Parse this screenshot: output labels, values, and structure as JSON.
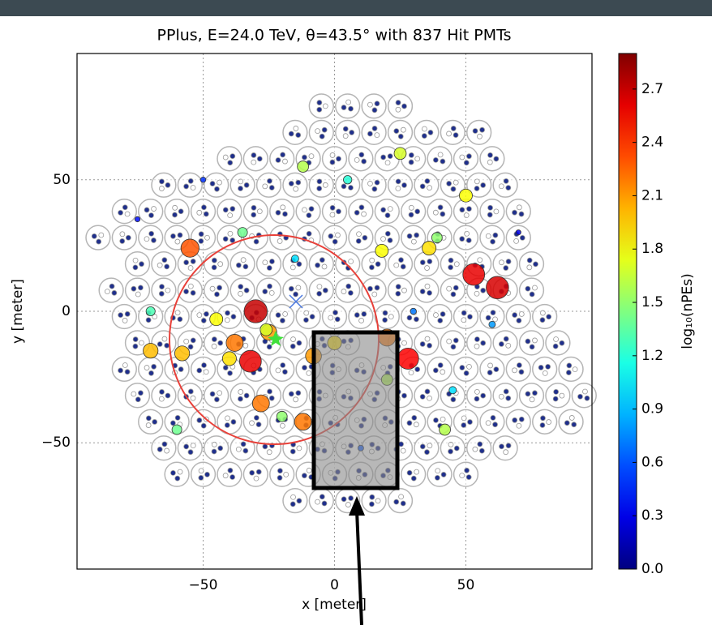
{
  "chart_data": {
    "type": "scatter",
    "title": "PPlus, E=24.0 TeV, θ=43.5° with 837 Hit PMTs",
    "x_label": "x [meter]",
    "y_label": "y [meter]",
    "colorbar_label": "log₁₀(nPEs)",
    "xlim": [
      -98,
      98
    ],
    "ylim": [
      -98,
      98
    ],
    "xticks": [
      {
        "value": -50,
        "label": "−50"
      },
      0,
      50
    ],
    "yticks": [
      {
        "value": -50,
        "label": "−50"
      },
      0,
      50
    ],
    "grid": true,
    "colormap": "jet",
    "clim": [
      0,
      2.9
    ],
    "cticks": [
      {
        "value": 0,
        "label": "0.0"
      },
      0.3,
      0.6,
      0.9,
      1.2,
      1.5,
      1.8,
      2.1,
      2.4,
      2.7
    ],
    "tanks": [
      {
        "y": 78,
        "x": [
          -5,
          5,
          15,
          25
        ]
      },
      {
        "y": 68,
        "x": [
          -15,
          -5,
          5,
          15,
          25,
          35,
          45,
          55
        ]
      },
      {
        "y": 58,
        "x": [
          -40,
          -30,
          -20,
          -10,
          0,
          10,
          20,
          30,
          40,
          50,
          60
        ]
      },
      {
        "y": 48,
        "x": [
          -65,
          -55,
          -45,
          -35,
          -25,
          -15,
          -5,
          5,
          15,
          25,
          35,
          45,
          55,
          65
        ]
      },
      {
        "y": 38,
        "x": [
          -80,
          -70,
          -60,
          -50,
          -40,
          -30,
          -20,
          -10,
          0,
          10,
          20,
          30,
          40,
          50,
          60,
          70
        ]
      },
      {
        "y": 28,
        "x": [
          -90,
          -80,
          -70,
          -60,
          -50,
          -40,
          -30,
          -20,
          -10,
          0,
          10,
          20,
          30,
          40,
          50,
          60,
          70
        ]
      },
      {
        "y": 18,
        "x": [
          -75,
          -65,
          -55,
          -45,
          -35,
          -25,
          -15,
          -5,
          5,
          15,
          25,
          35,
          45,
          55,
          65,
          75
        ]
      },
      {
        "y": 8,
        "x": [
          -85,
          -75,
          -65,
          -55,
          -45,
          -35,
          -25,
          -15,
          -5,
          5,
          15,
          25,
          35,
          45,
          55,
          65,
          75
        ]
      },
      {
        "y": -2,
        "x": [
          -80,
          -70,
          -60,
          -50,
          -40,
          -30,
          -20,
          -10,
          0,
          10,
          20,
          30,
          40,
          50,
          60,
          70,
          80
        ]
      },
      {
        "y": -12,
        "x": [
          -75,
          -65,
          -55,
          -45,
          -35,
          -25,
          -15,
          -5,
          5,
          25,
          35,
          45,
          55,
          65,
          75,
          85
        ]
      },
      {
        "y": -22,
        "x": [
          -80,
          -70,
          -60,
          -50,
          -40,
          -30,
          -20,
          -10,
          0,
          10,
          20,
          30,
          40,
          50,
          60,
          70,
          80,
          90
        ]
      },
      {
        "y": -32,
        "x": [
          -75,
          -65,
          -55,
          -45,
          -35,
          -25,
          -15,
          -5,
          5,
          15,
          25,
          35,
          45,
          55,
          65,
          75,
          85,
          95
        ]
      },
      {
        "y": -42,
        "x": [
          -70,
          -60,
          -50,
          -40,
          -30,
          -20,
          -10,
          0,
          10,
          20,
          30,
          40,
          50,
          60,
          70,
          80,
          90
        ]
      },
      {
        "y": -52,
        "x": [
          -65,
          -55,
          -45,
          -35,
          -25,
          -15,
          -5,
          5,
          15,
          25,
          35,
          45,
          55,
          65
        ]
      },
      {
        "y": -62,
        "x": [
          -60,
          -50,
          -40,
          -30,
          -20,
          -10,
          0,
          10,
          20,
          30,
          40,
          50
        ]
      },
      {
        "y": -72,
        "x": [
          -15,
          -5,
          5,
          15,
          25
        ]
      }
    ],
    "hits": {
      "x": [
        -30,
        53,
        62,
        -32,
        -55,
        28,
        -38,
        -25,
        -28,
        -40,
        -70,
        -58,
        -8,
        -12,
        20,
        36,
        20,
        42,
        -45,
        18,
        0,
        -26,
        39,
        -35,
        50,
        25,
        -12,
        -60,
        -20,
        5,
        -70,
        60,
        -15,
        10,
        30,
        -50,
        -75,
        70,
        45
      ],
      "y": [
        0,
        14,
        9,
        -19,
        24,
        -18,
        -12,
        -8,
        -35,
        -18,
        -15,
        -16,
        -17,
        -42,
        -26,
        24,
        -10,
        -45,
        -3,
        23,
        -12,
        -7,
        28,
        30,
        44,
        60,
        55,
        -45,
        -40,
        50,
        0,
        -5,
        20,
        -52,
        0,
        50,
        35,
        30,
        -30
      ],
      "values": [
        2.7,
        2.6,
        2.65,
        2.6,
        2.3,
        2.55,
        2.2,
        2.1,
        2.2,
        1.9,
        2.0,
        2.0,
        2.1,
        2.2,
        1.6,
        1.9,
        2.2,
        1.6,
        1.8,
        1.8,
        1.9,
        1.7,
        1.5,
        1.4,
        1.8,
        1.7,
        1.6,
        1.4,
        1.5,
        1.2,
        1.3,
        0.8,
        1.0,
        0.6,
        0.7,
        0.5,
        0.4,
        0.3,
        1.0
      ]
    }
  }
}
